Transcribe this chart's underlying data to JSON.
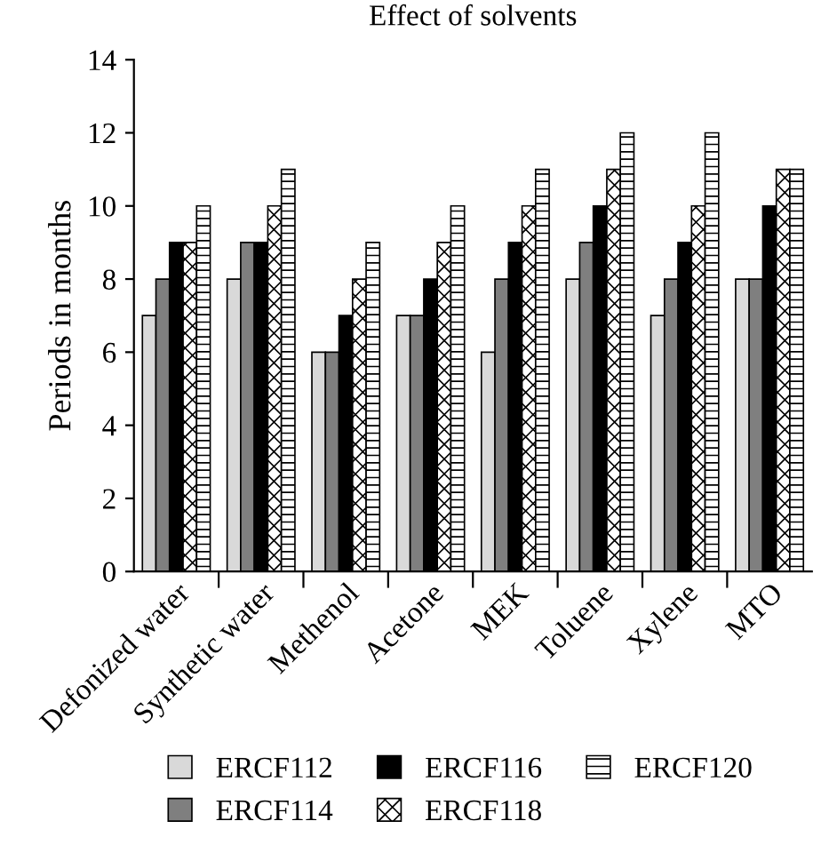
{
  "chart_data": {
    "type": "bar",
    "title": "Effect of solvents",
    "ylabel": "Periods in months",
    "categories": [
      "Defonized water",
      "Synthetic water",
      "Methenol",
      "Acetone",
      "MEK",
      "Toluene",
      "Xylene",
      "MTO"
    ],
    "series": [
      {
        "name": "ERCF112",
        "color": "#d9d9d9",
        "values": [
          7,
          8,
          6,
          7,
          6,
          8,
          7,
          8
        ]
      },
      {
        "name": "ERCF114",
        "color": "#7f7f7f",
        "values": [
          8,
          9,
          6,
          7,
          8,
          9,
          8,
          8
        ]
      },
      {
        "name": "ERCF116",
        "color": "#000000",
        "values": [
          9,
          9,
          7,
          8,
          9,
          10,
          9,
          10
        ]
      },
      {
        "name": "ERCF118",
        "color": "#000000",
        "values": [
          9,
          10,
          8,
          9,
          10,
          11,
          10,
          11
        ]
      },
      {
        "name": "ERCF120",
        "color": "#000000",
        "values": [
          10,
          11,
          9,
          10,
          11,
          12,
          12,
          11
        ]
      }
    ],
    "ylim": [
      0,
      14
    ],
    "yticks": [
      0,
      2,
      4,
      6,
      8,
      10,
      12,
      14
    ],
    "grid": false,
    "legend": "bottom"
  }
}
